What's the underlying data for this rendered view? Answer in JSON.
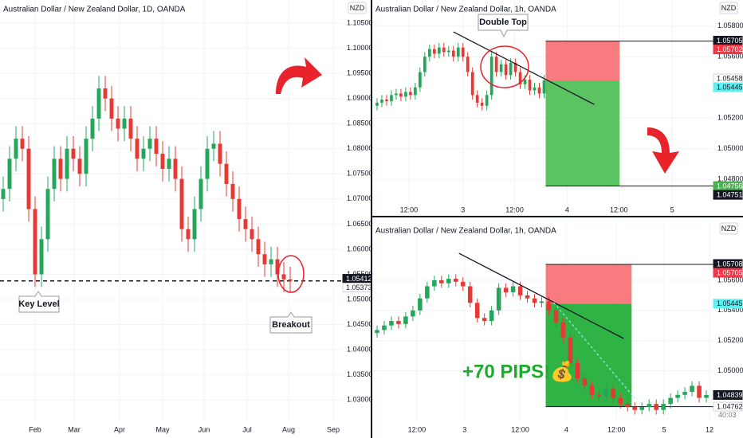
{
  "chart_data": [
    {
      "type": "candlestick",
      "title": "Australian Dollar / New Zealand Dollar, 1D, OANDA",
      "currency": "NZD",
      "up_color": "#26a65b",
      "down_color": "#e53935",
      "ylim": [
        1.0256,
        1.1096
      ],
      "xlim": [
        -0.5,
        53.25
      ],
      "yticks": [
        {
          "value": 1.105,
          "label": "1.10500"
        },
        {
          "value": 1.1,
          "label": "1.10000"
        },
        {
          "value": 1.095,
          "label": "1.09500"
        },
        {
          "value": 1.09,
          "label": "1.09000"
        },
        {
          "value": 1.085,
          "label": "1.08500"
        },
        {
          "value": 1.08,
          "label": "1.08000"
        },
        {
          "value": 1.075,
          "label": "1.07500"
        },
        {
          "value": 1.07,
          "label": "1.07000"
        },
        {
          "value": 1.065,
          "label": "1.06500"
        },
        {
          "value": 1.06,
          "label": "1.06000"
        },
        {
          "value": 1.055,
          "label": "1.05500"
        },
        {
          "value": 1.05,
          "label": "1.05000"
        },
        {
          "value": 1.045,
          "label": "1.04500"
        },
        {
          "value": 1.04,
          "label": "1.04000"
        },
        {
          "value": 1.035,
          "label": "1.03500"
        },
        {
          "value": 1.03,
          "label": "1.03000"
        }
      ],
      "xticks": [
        {
          "value": 5,
          "label": "Feb"
        },
        {
          "value": 11.125,
          "label": "Mar"
        },
        {
          "value": 18.25,
          "label": "Apr"
        },
        {
          "value": 25,
          "label": "May"
        },
        {
          "value": 31.5,
          "label": "Jun"
        },
        {
          "value": 38.25,
          "label": "Jul"
        },
        {
          "value": 44.75,
          "label": "Aug"
        },
        {
          "value": 51.75,
          "label": "Sep"
        }
      ],
      "key_level": 1.0537,
      "tags": [
        {
          "value": 1.05412,
          "color": "#131722",
          "text_color": "#ffffff"
        },
        {
          "value": 1.05373,
          "color": "#ffffff",
          "text_color": "#131722"
        }
      ],
      "annotations": [
        "Key Level",
        "Breakout"
      ],
      "candles": [
        [
          1.07,
          1.0745,
          1.0675,
          1.072
        ],
        [
          1.072,
          1.0805,
          1.0695,
          1.078
        ],
        [
          1.078,
          1.0845,
          1.0755,
          1.082
        ],
        [
          1.082,
          1.0845,
          1.0775,
          1.08
        ],
        [
          1.08,
          1.0825,
          1.0655,
          1.068
        ],
        [
          1.068,
          1.0705,
          1.0525,
          1.055
        ],
        [
          1.055,
          1.0645,
          1.0525,
          1.062
        ],
        [
          1.062,
          1.0745,
          1.0595,
          1.072
        ],
        [
          1.072,
          1.0805,
          1.0695,
          1.078
        ],
        [
          1.078,
          1.0805,
          1.0715,
          1.074
        ],
        [
          1.074,
          1.0825,
          1.0715,
          1.08
        ],
        [
          1.08,
          1.0825,
          1.0755,
          1.078
        ],
        [
          1.078,
          1.0805,
          1.0725,
          1.075
        ],
        [
          1.075,
          1.0845,
          1.0725,
          1.082
        ],
        [
          1.082,
          1.0885,
          1.0795,
          1.086
        ],
        [
          1.086,
          1.0945,
          1.0835,
          1.092
        ],
        [
          1.092,
          1.0945,
          1.0875,
          1.09
        ],
        [
          1.09,
          1.0925,
          1.0835,
          1.086
        ],
        [
          1.086,
          1.0885,
          1.0815,
          1.084
        ],
        [
          1.084,
          1.0885,
          1.0815,
          1.086
        ],
        [
          1.086,
          1.0885,
          1.0795,
          1.082
        ],
        [
          1.082,
          1.0845,
          1.0755,
          1.078
        ],
        [
          1.078,
          1.0825,
          1.0755,
          1.08
        ],
        [
          1.08,
          1.0845,
          1.0775,
          1.082
        ],
        [
          1.082,
          1.0845,
          1.0765,
          1.079
        ],
        [
          1.079,
          1.0815,
          1.0735,
          1.076
        ],
        [
          1.076,
          1.0805,
          1.0735,
          1.078
        ],
        [
          1.078,
          1.0805,
          1.0715,
          1.074
        ],
        [
          1.074,
          1.0765,
          1.0615,
          1.064
        ],
        [
          1.064,
          1.0665,
          1.0595,
          1.062
        ],
        [
          1.062,
          1.0705,
          1.0595,
          1.068
        ],
        [
          1.068,
          1.0765,
          1.0655,
          1.074
        ],
        [
          1.074,
          1.0825,
          1.0715,
          1.08
        ],
        [
          1.08,
          1.0835,
          1.0775,
          1.081
        ],
        [
          1.081,
          1.0835,
          1.0745,
          1.077
        ],
        [
          1.077,
          1.0795,
          1.0705,
          1.073
        ],
        [
          1.073,
          1.0755,
          1.0675,
          1.07
        ],
        [
          1.07,
          1.0725,
          1.0635,
          1.066
        ],
        [
          1.066,
          1.0685,
          1.0615,
          1.064
        ],
        [
          1.064,
          1.0665,
          1.0595,
          1.062
        ],
        [
          1.062,
          1.0645,
          1.0565,
          1.059
        ],
        [
          1.059,
          1.0615,
          1.0545,
          1.057
        ],
        [
          1.057,
          1.0605,
          1.0545,
          1.058
        ],
        [
          1.058,
          1.0605,
          1.0525,
          1.055
        ],
        [
          1.055,
          1.0575,
          1.0515,
          1.054
        ],
        [
          1.054,
          1.0565,
          1.0515,
          1.0537
        ]
      ]
    },
    {
      "type": "candlestick",
      "title": "Australian Dollar / New Zealand Dollar, 1h, OANDA",
      "currency": "NZD",
      "up_color": "#26a65b",
      "down_color": "#e53935",
      "ylim": [
        1.0464,
        1.0597
      ],
      "xlim": [
        -1,
        70.5
      ],
      "yticks": [
        {
          "value": 1.058,
          "label": "1.05800"
        },
        {
          "value": 1.056,
          "label": "1.05600"
        },
        {
          "value": 1.052,
          "label": "1.05200"
        },
        {
          "value": 1.05,
          "label": "1.05000"
        },
        {
          "value": 1.048,
          "label": "1.04800"
        }
      ],
      "xticks": [
        {
          "value": 6.67,
          "label": "12:00"
        },
        {
          "value": 18,
          "label": "3"
        },
        {
          "value": 28.83,
          "label": "12:00"
        },
        {
          "value": 39.83,
          "label": "4"
        },
        {
          "value": 50.67,
          "label": "12:00"
        },
        {
          "value": 61.83,
          "label": "5"
        }
      ],
      "position": {
        "from": 35.33,
        "to": 50.83,
        "stop": 1.05702,
        "entry": 1.05445,
        "target": 1.04756,
        "stop_color": "#f77b7f",
        "target_color": "#5cc362"
      },
      "trend": [
        [
          16,
          1.05762
        ],
        [
          45.5,
          1.05289
        ]
      ],
      "tags": [
        {
          "value": 1.05705,
          "color": "#131722",
          "text_color": "#ffffff"
        },
        {
          "value": 1.05702,
          "color": "#f23645",
          "text_color": "#ffffff"
        },
        {
          "value": 1.05458,
          "color": "#ffffff",
          "text_color": "#131722"
        },
        {
          "value": 1.05445,
          "color": "#5ff0f0",
          "text_color": "#131722"
        },
        {
          "value": 1.04756,
          "color": "#4caf50",
          "text_color": "#ffffff"
        },
        {
          "value": 1.04751,
          "color": "#131722",
          "text_color": "#ffffff"
        }
      ],
      "annotations": [
        "Double Top"
      ],
      "candles": [
        [
          1.0528,
          1.0533,
          1.0525,
          1.053
        ],
        [
          1.053,
          1.0535,
          1.0527,
          1.0532
        ],
        [
          1.0532,
          1.0535,
          1.0528,
          1.0531
        ],
        [
          1.0531,
          1.0538,
          1.0528,
          1.0535
        ],
        [
          1.0535,
          1.0539,
          1.0532,
          1.0536
        ],
        [
          1.0536,
          1.0539,
          1.0531,
          1.0534
        ],
        [
          1.0534,
          1.054,
          1.0531,
          1.0537
        ],
        [
          1.0537,
          1.054,
          1.0532,
          1.0535
        ],
        [
          1.0535,
          1.0543,
          1.0532,
          1.054
        ],
        [
          1.054,
          1.0553,
          1.0537,
          1.055
        ],
        [
          1.055,
          1.0563,
          1.0547,
          1.056
        ],
        [
          1.056,
          1.0568,
          1.0557,
          1.0565
        ],
        [
          1.0565,
          1.0568,
          1.0559,
          1.0562
        ],
        [
          1.0562,
          1.0569,
          1.0559,
          1.0566
        ],
        [
          1.0566,
          1.0569,
          1.056,
          1.0563
        ],
        [
          1.0563,
          1.0567,
          1.056,
          1.0564
        ],
        [
          1.0564,
          1.0567,
          1.0557,
          1.056
        ],
        [
          1.056,
          1.0569,
          1.0557,
          1.0566
        ],
        [
          1.0566,
          1.0569,
          1.0557,
          1.056
        ],
        [
          1.056,
          1.0563,
          1.0547,
          1.055
        ],
        [
          1.055,
          1.0553,
          1.0532,
          1.0535
        ],
        [
          1.0535,
          1.0538,
          1.0527,
          1.053
        ],
        [
          1.053,
          1.0533,
          1.0525,
          1.0528
        ],
        [
          1.0528,
          1.0538,
          1.0525,
          1.0535
        ],
        [
          1.0535,
          1.0563,
          1.0532,
          1.056
        ],
        [
          1.056,
          1.0563,
          1.0547,
          1.055
        ],
        [
          1.055,
          1.0558,
          1.0547,
          1.0555
        ],
        [
          1.0555,
          1.0558,
          1.0545,
          1.0548
        ],
        [
          1.0548,
          1.0559,
          1.0545,
          1.0556
        ],
        [
          1.0556,
          1.0559,
          1.0547,
          1.055
        ],
        [
          1.055,
          1.0553,
          1.0539,
          1.0542
        ],
        [
          1.0542,
          1.0548,
          1.0539,
          1.0545
        ],
        [
          1.0545,
          1.0548,
          1.0535,
          1.0538
        ],
        [
          1.0538,
          1.0543,
          1.0535,
          1.054
        ],
        [
          1.054,
          1.0543,
          1.0533,
          1.0536
        ],
        [
          1.0536,
          1.0548,
          1.0533,
          1.05445
        ]
      ]
    },
    {
      "type": "candlestick",
      "title": "Australian Dollar / New Zealand Dollar, 1h, OANDA",
      "currency": "NZD",
      "up_color": "#26a65b",
      "down_color": "#e53935",
      "ylim": [
        1.0467,
        1.0598
      ],
      "xlim": [
        -0.667,
        47
      ],
      "yticks": [
        {
          "value": 1.056,
          "label": "1.05600"
        },
        {
          "value": 1.054,
          "label": "1.05400"
        },
        {
          "value": 1.052,
          "label": "1.05200"
        },
        {
          "value": 1.05,
          "label": "1.05000"
        }
      ],
      "xticks": [
        {
          "value": 5.56,
          "label": "12:00"
        },
        {
          "value": 12.22,
          "label": "3"
        },
        {
          "value": 20,
          "label": "12:00"
        },
        {
          "value": 26.44,
          "label": "4"
        },
        {
          "value": 33.44,
          "label": "12:00"
        },
        {
          "value": 40.11,
          "label": "5"
        },
        {
          "value": 46.44,
          "label": "12"
        }
      ],
      "position": {
        "from": 23.56,
        "to": 35.56,
        "stop": 1.05705,
        "entry": 1.05445,
        "target": 1.04762,
        "stop_color": "#f77b7f",
        "target_color": "#2fb344"
      },
      "trend": [
        [
          11.44,
          1.05779
        ],
        [
          34.44,
          1.05214
        ]
      ],
      "path": [
        [
          24.67,
          1.05452
        ],
        [
          36,
          1.04818
        ]
      ],
      "tags": [
        {
          "value": 1.05708,
          "color": "#131722",
          "text_color": "#ffffff"
        },
        {
          "value": 1.05705,
          "color": "#f23645",
          "text_color": "#ffffff"
        },
        {
          "value": 1.05445,
          "color": "#5ff0f0",
          "text_color": "#131722"
        },
        {
          "value": 1.04839,
          "color": "#131722",
          "text_color": "#ffffff"
        },
        {
          "value": 1.04762,
          "color": "#ffffff",
          "text_color": "#131722"
        }
      ],
      "countdown": "40:03",
      "annotations": [
        "+70 PIPS!💰"
      ],
      "candles": [
        [
          1.0525,
          1.053,
          1.0522,
          1.0527
        ],
        [
          1.0527,
          1.0533,
          1.0524,
          1.053
        ],
        [
          1.053,
          1.0536,
          1.0527,
          1.0533
        ],
        [
          1.0533,
          1.0536,
          1.0528,
          1.0531
        ],
        [
          1.0531,
          1.0539,
          1.0528,
          1.0536
        ],
        [
          1.0536,
          1.0543,
          1.0533,
          1.054
        ],
        [
          1.054,
          1.0551,
          1.0537,
          1.0548
        ],
        [
          1.0548,
          1.0559,
          1.0545,
          1.0556
        ],
        [
          1.0556,
          1.0563,
          1.0553,
          1.056
        ],
        [
          1.056,
          1.0563,
          1.0555,
          1.0558
        ],
        [
          1.0558,
          1.0564,
          1.0555,
          1.0561
        ],
        [
          1.0561,
          1.0564,
          1.0556,
          1.0559
        ],
        [
          1.0559,
          1.0562,
          1.0553,
          1.0556
        ],
        [
          1.0556,
          1.0559,
          1.0542,
          1.0545
        ],
        [
          1.0545,
          1.0548,
          1.0532,
          1.0535
        ],
        [
          1.0535,
          1.0538,
          1.053,
          1.0533
        ],
        [
          1.0533,
          1.0543,
          1.053,
          1.054
        ],
        [
          1.054,
          1.0558,
          1.0537,
          1.0555
        ],
        [
          1.0555,
          1.0558,
          1.0549,
          1.0552
        ],
        [
          1.0552,
          1.0559,
          1.0549,
          1.0556
        ],
        [
          1.0556,
          1.0559,
          1.0547,
          1.055
        ],
        [
          1.055,
          1.0553,
          1.0545,
          1.0548
        ],
        [
          1.0548,
          1.0551,
          1.0542,
          1.0545
        ],
        [
          1.0545,
          1.0549,
          1.0542,
          1.0546
        ],
        [
          1.0546,
          1.0549,
          1.0537,
          1.054
        ],
        [
          1.054,
          1.0543,
          1.0529,
          1.0532
        ],
        [
          1.0532,
          1.0535,
          1.0519,
          1.0522
        ],
        [
          1.0522,
          1.0525,
          1.0502,
          1.0505
        ],
        [
          1.0505,
          1.0508,
          1.0492,
          1.0495
        ],
        [
          1.0495,
          1.0498,
          1.0487,
          1.049
        ],
        [
          1.049,
          1.0493,
          1.0481,
          1.0484
        ],
        [
          1.0484,
          1.0487,
          1.048,
          1.0483
        ],
        [
          1.0483,
          1.0491,
          1.048,
          1.0488
        ],
        [
          1.0488,
          1.0491,
          1.0479,
          1.0482
        ],
        [
          1.0482,
          1.0485,
          1.0475,
          1.0478
        ],
        [
          1.0478,
          1.0481,
          1.0473,
          1.0476
        ],
        [
          1.0476,
          1.0479,
          1.0471,
          1.0474
        ],
        [
          1.0474,
          1.0479,
          1.0471,
          1.0476
        ],
        [
          1.0476,
          1.0481,
          1.0473,
          1.0478
        ],
        [
          1.0478,
          1.0481,
          1.0471,
          1.0474
        ],
        [
          1.0474,
          1.0481,
          1.0471,
          1.0478
        ],
        [
          1.0478,
          1.0485,
          1.0475,
          1.0482
        ],
        [
          1.0482,
          1.0487,
          1.0479,
          1.0484
        ],
        [
          1.0484,
          1.0489,
          1.0481,
          1.0486
        ],
        [
          1.0486,
          1.0493,
          1.0483,
          1.049
        ],
        [
          1.049,
          1.0493,
          1.0479,
          1.0482
        ],
        [
          1.0482,
          1.0487,
          1.0479,
          1.04839
        ]
      ]
    }
  ]
}
